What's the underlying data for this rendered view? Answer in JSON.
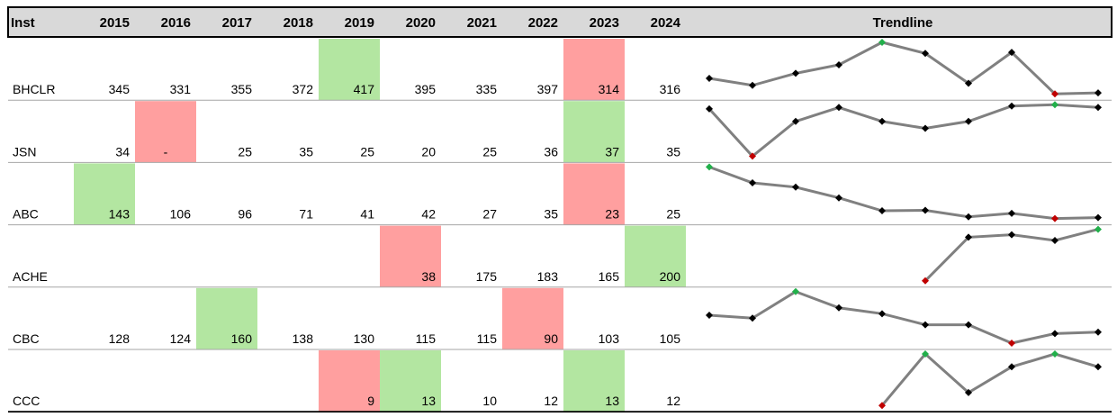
{
  "table": {
    "header": [
      "Inst",
      "2015",
      "2016",
      "2017",
      "2018",
      "2019",
      "2020",
      "2021",
      "2022",
      "2023",
      "2024",
      "Trendline"
    ],
    "rows": [
      {
        "label": "BHCLR",
        "values": [
          345,
          331,
          355,
          372,
          417,
          395,
          335,
          397,
          314,
          316
        ]
      },
      {
        "label": "JSN",
        "values": [
          34,
          0,
          25,
          35,
          25,
          20,
          25,
          36,
          37,
          35
        ],
        "value_labels": [
          null,
          "-",
          null,
          null,
          null,
          null,
          null,
          null,
          null,
          null
        ]
      },
      {
        "label": "ABC",
        "values": [
          143,
          106,
          96,
          71,
          41,
          42,
          27,
          35,
          23,
          25
        ]
      },
      {
        "label": "ACHE",
        "values": [
          null,
          null,
          null,
          null,
          null,
          38,
          175,
          183,
          165,
          200
        ]
      },
      {
        "label": "CBC",
        "values": [
          128,
          124,
          160,
          138,
          130,
          115,
          115,
          90,
          103,
          105
        ]
      },
      {
        "label": "CCC",
        "values": [
          null,
          null,
          null,
          null,
          9,
          13,
          10,
          12,
          13,
          12
        ]
      }
    ],
    "highlight": {
      "max": "#b3e6a1",
      "min": "#ff9f9f"
    },
    "sparkline": {
      "line": "#808080",
      "point": "#000000",
      "max": "#22b04b",
      "min": "#c00000"
    }
  }
}
